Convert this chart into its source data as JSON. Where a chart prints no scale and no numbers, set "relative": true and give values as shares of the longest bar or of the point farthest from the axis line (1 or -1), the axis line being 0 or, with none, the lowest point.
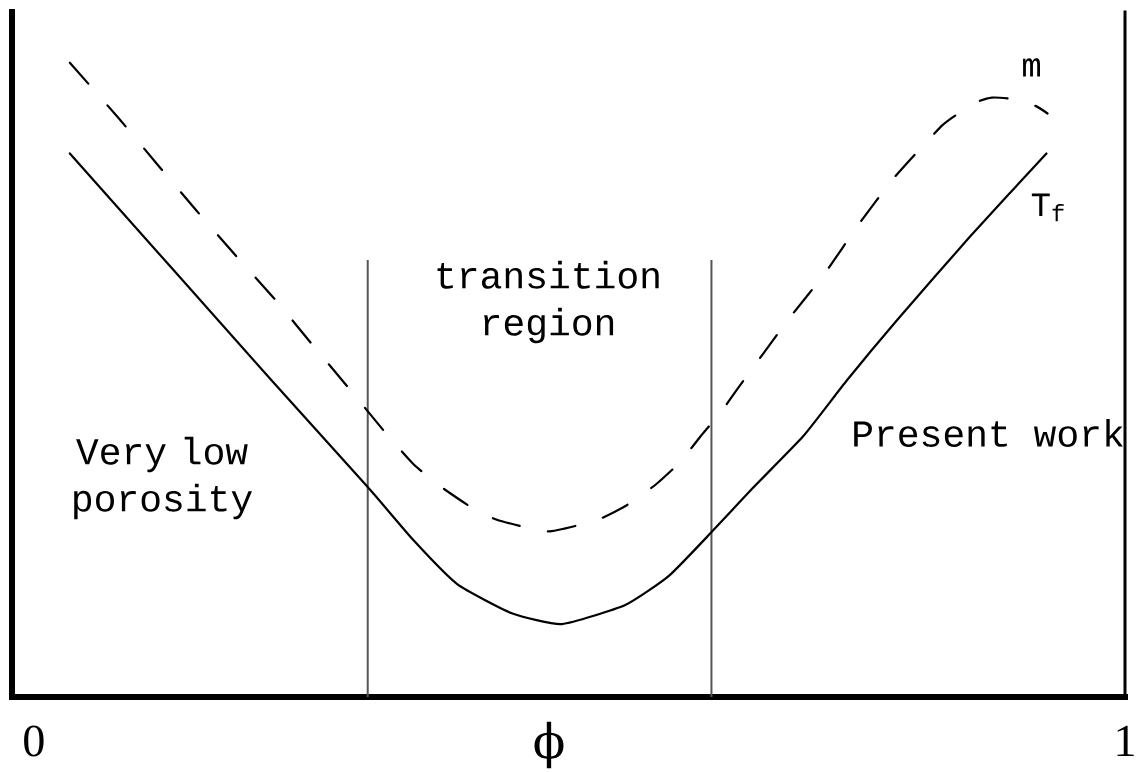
{
  "chart_data": {
    "type": "line",
    "xlabel": "ϕ",
    "relative": true,
    "xlim": [
      -0.02,
      1.0
    ],
    "xticks": [
      0,
      1
    ],
    "tick_labels": "x",
    "series": [
      {
        "name": "m",
        "color": "#000000",
        "line_style": "dashed",
        "x": [
          0.033,
          0.078,
          0.114,
          0.148,
          0.185,
          0.222,
          0.255,
          0.291,
          0.324,
          0.348,
          0.371,
          0.401,
          0.425,
          0.471,
          0.516,
          0.543,
          0.57,
          0.592,
          0.612,
          0.63,
          0.647,
          0.691,
          0.725,
          0.755,
          0.789,
          0.833,
          0.863,
          0.878,
          0.897,
          0.918,
          0.929
        ],
        "values": [
          1.0,
          0.912,
          0.838,
          0.769,
          0.696,
          0.625,
          0.556,
          0.482,
          0.413,
          0.367,
          0.334,
          0.299,
          0.279,
          0.261,
          0.279,
          0.302,
          0.335,
          0.37,
          0.413,
          0.45,
          0.491,
          0.594,
          0.668,
          0.743,
          0.82,
          0.902,
          0.937,
          0.945,
          0.943,
          0.932,
          0.92
        ]
      },
      {
        "name": "T$_{f}$",
        "color": "#000000",
        "line_style": "solid",
        "x": [
          0.033,
          0.218,
          0.306,
          0.348,
          0.388,
          0.438,
          0.484,
          0.542,
          0.582,
          0.62,
          0.658,
          0.705,
          0.745,
          0.791,
          0.858,
          0.928
        ],
        "values": [
          0.857,
          0.499,
          0.331,
          0.247,
          0.178,
          0.132,
          0.115,
          0.145,
          0.191,
          0.258,
          0.328,
          0.411,
          0.499,
          0.594,
          0.726,
          0.857
        ]
      }
    ],
    "ref_lines": [
      {
        "axis": "x",
        "value": 0.306,
        "color": "#555555"
      },
      {
        "axis": "x",
        "value": 0.621,
        "color": "#555555"
      }
    ],
    "annotations": [
      "transition region",
      "Very low porosity",
      "Present work"
    ]
  }
}
